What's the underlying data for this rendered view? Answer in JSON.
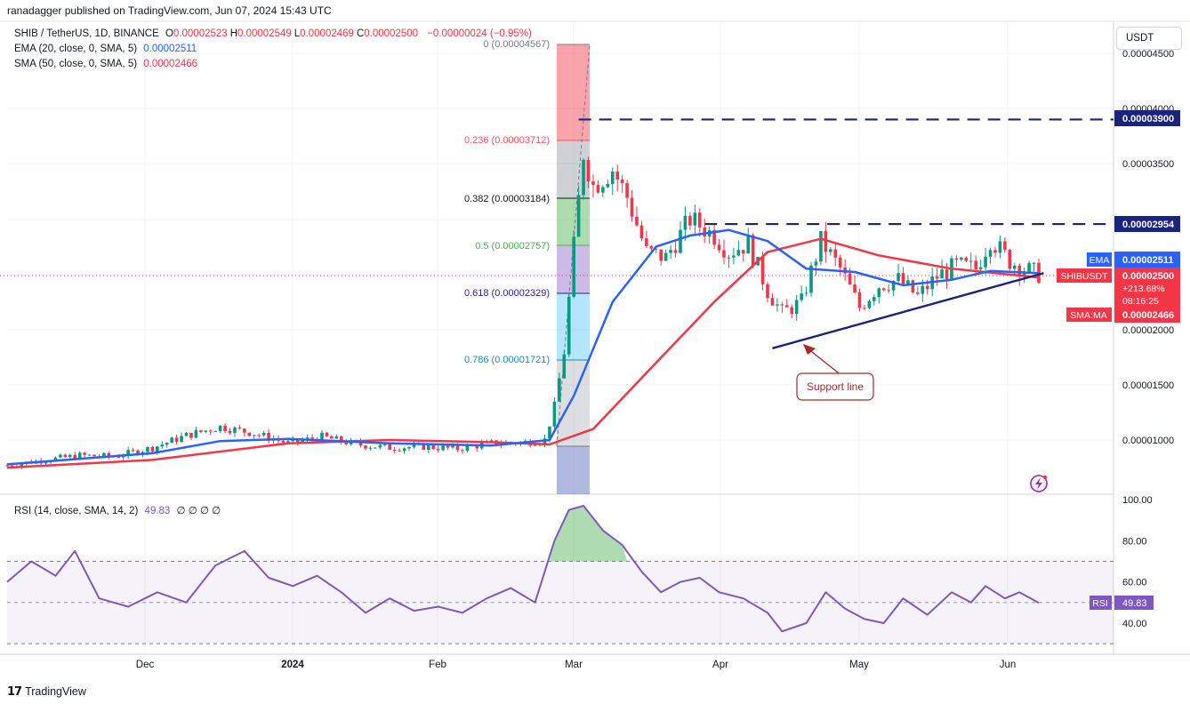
{
  "header": {
    "published_by": "ranadagger published on TradingView.com, Jun 07, 2024 15:43 UTC"
  },
  "symbol": {
    "pair": "SHIB / TetherUS, 1D, BINANCE",
    "ohlc": [
      {
        "label": "O",
        "value": "0.00002523"
      },
      {
        "label": "H",
        "value": "0.00002549"
      },
      {
        "label": "L",
        "value": "0.00002469"
      },
      {
        "label": "C",
        "value": "0.00002500"
      }
    ],
    "change": "−0.00000024 (−0.95%)"
  },
  "indicators": {
    "ema": {
      "label": "EMA (20, close, 0, SMA, 5)",
      "value": "0.00002511",
      "color": "#2962ff"
    },
    "sma": {
      "label": "SMA (50, close, 0, SMA, 5)",
      "value": "0.00002466",
      "color": "#f23645"
    },
    "rsi": {
      "label": "RSI (14, close, SMA, 14, 2)",
      "value": "49.83",
      "extras": "∅ ∅ ∅ ∅",
      "color": "#7e57c2"
    }
  },
  "price_axis": {
    "currency_button": "USDT",
    "ticks": [
      "0.00004500",
      "0.00004000",
      "0.00003500",
      "0.00003000",
      "0.00002000",
      "0.00001500",
      "0.00001000"
    ],
    "badges": {
      "resistance_high": "0.00003900",
      "resistance_mid": "0.00002954",
      "ema_tag": "EMA",
      "ema_value": "0.00002511",
      "symbol_tag": "SHIBUSDT",
      "price_value": "0.00002500",
      "price_change": "+213.68%",
      "countdown": "08:16:25",
      "sma_tag": "SMA:MA",
      "sma_value": "0.00002466"
    }
  },
  "rsi_axis": {
    "ticks": [
      "100.00",
      "80.00",
      "60.00",
      "40.00"
    ],
    "badge_tag": "RSI",
    "badge_value": "49.83"
  },
  "time_axis": {
    "labels": [
      "Dec",
      "2024",
      "Feb",
      "Mar",
      "Apr",
      "May",
      "Jun"
    ]
  },
  "fibonacci": [
    {
      "label": "0 (0.00004567)",
      "color": "#787b86"
    },
    {
      "label": "0.236 (0.00003712)",
      "color": "#f7525f"
    },
    {
      "label": "0.382 (0.00003184)",
      "color": "#131722"
    },
    {
      "label": "0.5 (0.00002757)",
      "color": "#4caf50"
    },
    {
      "label": "0.618 (0.00002329)",
      "color": "#311b92"
    },
    {
      "label": "0.786 (0.00001721)",
      "color": "#1e88b5"
    }
  ],
  "annotations": {
    "support_line": "Support line"
  },
  "footer": {
    "brand": "TradingView"
  },
  "chart_data": {
    "type": "candlestick",
    "title": "SHIB / TetherUS, 1D, BINANCE",
    "x_range": [
      "2023-11-07",
      "2024-06-07"
    ],
    "ylim": [
      7e-06,
      4.65e-05
    ],
    "grid": true,
    "price_series": {
      "name": "SHIBUSDT",
      "points": [
        [
          "2023-11-07",
          7.7e-06
        ],
        [
          "2023-11-15",
          8.2e-06
        ],
        [
          "2023-11-22",
          8.6e-06
        ],
        [
          "2023-11-29",
          8.5e-06
        ],
        [
          "2023-12-07",
          9.3e-06
        ],
        [
          "2023-12-14",
          1.04e-05
        ],
        [
          "2023-12-21",
          1.12e-05
        ],
        [
          "2023-12-28",
          1.06e-05
        ],
        [
          "2024-01-04",
          9.7e-06
        ],
        [
          "2024-01-11",
          1.03e-05
        ],
        [
          "2024-01-18",
          9.6e-06
        ],
        [
          "2024-01-25",
          9.3e-06
        ],
        [
          "2024-02-01",
          9.4e-06
        ],
        [
          "2024-02-08",
          9.2e-06
        ],
        [
          "2024-02-15",
          9.7e-06
        ],
        [
          "2024-02-22",
          9.8e-06
        ],
        [
          "2024-02-26",
          1e-05
        ],
        [
          "2024-02-28",
          1.3e-05
        ],
        [
          "2024-03-01",
          1.8e-05
        ],
        [
          "2024-03-03",
          2.75e-05
        ],
        [
          "2024-03-05",
          3.6e-05
        ],
        [
          "2024-03-07",
          3.3e-05
        ],
        [
          "2024-03-11",
          3.45e-05
        ],
        [
          "2024-03-14",
          3.2e-05
        ],
        [
          "2024-03-18",
          2.7e-05
        ],
        [
          "2024-03-22",
          2.65e-05
        ],
        [
          "2024-03-27",
          3e-05
        ],
        [
          "2024-04-01",
          2.85e-05
        ],
        [
          "2024-04-04",
          2.7e-05
        ],
        [
          "2024-04-08",
          2.78e-05
        ],
        [
          "2024-04-12",
          2.35e-05
        ],
        [
          "2024-04-15",
          2.15e-05
        ],
        [
          "2024-04-19",
          2.25e-05
        ],
        [
          "2024-04-23",
          2.8e-05
        ],
        [
          "2024-04-27",
          2.55e-05
        ],
        [
          "2024-05-01",
          2.2e-05
        ],
        [
          "2024-05-05",
          2.4e-05
        ],
        [
          "2024-05-09",
          2.45e-05
        ],
        [
          "2024-05-13",
          2.3e-05
        ],
        [
          "2024-05-17",
          2.48e-05
        ],
        [
          "2024-05-21",
          2.58e-05
        ],
        [
          "2024-05-25",
          2.55e-05
        ],
        [
          "2024-05-28",
          2.82e-05
        ],
        [
          "2024-06-01",
          2.62e-05
        ],
        [
          "2024-06-04",
          2.55e-05
        ],
        [
          "2024-06-07",
          2.5e-05
        ]
      ]
    },
    "ema20_series": {
      "name": "EMA",
      "points": [
        [
          "2023-11-07",
          7.8e-06
        ],
        [
          "2023-12-07",
          8.8e-06
        ],
        [
          "2023-12-21",
          9.9e-06
        ],
        [
          "2024-01-04",
          1.01e-05
        ],
        [
          "2024-01-25",
          9.7e-06
        ],
        [
          "2024-02-15",
          9.5e-06
        ],
        [
          "2024-02-27",
          1e-05
        ],
        [
          "2024-03-03",
          1.4e-05
        ],
        [
          "2024-03-11",
          2.25e-05
        ],
        [
          "2024-03-20",
          2.75e-05
        ],
        [
          "2024-03-27",
          2.85e-05
        ],
        [
          "2024-04-04",
          2.9e-05
        ],
        [
          "2024-04-12",
          2.8e-05
        ],
        [
          "2024-04-20",
          2.55e-05
        ],
        [
          "2024-04-30",
          2.52e-05
        ],
        [
          "2024-05-10",
          2.4e-05
        ],
        [
          "2024-05-20",
          2.45e-05
        ],
        [
          "2024-05-28",
          2.53e-05
        ],
        [
          "2024-06-07",
          2.51e-05
        ]
      ]
    },
    "sma50_series": {
      "name": "SMA:MA",
      "points": [
        [
          "2023-11-07",
          7.5e-06
        ],
        [
          "2023-12-07",
          8.2e-06
        ],
        [
          "2024-01-04",
          9.7e-06
        ],
        [
          "2024-01-25",
          1e-05
        ],
        [
          "2024-02-15",
          9.8e-06
        ],
        [
          "2024-02-27",
          9.6e-06
        ],
        [
          "2024-03-07",
          1.1e-05
        ],
        [
          "2024-03-20",
          1.7e-05
        ],
        [
          "2024-04-01",
          2.25e-05
        ],
        [
          "2024-04-12",
          2.7e-05
        ],
        [
          "2024-04-23",
          2.82e-05
        ],
        [
          "2024-05-05",
          2.67e-05
        ],
        [
          "2024-05-20",
          2.55e-05
        ],
        [
          "2024-06-07",
          2.47e-05
        ]
      ]
    },
    "horizontal_levels": [
      {
        "value": 3.9e-05,
        "from": "2024-03-04",
        "style": "dashed"
      },
      {
        "value": 2.954e-05,
        "from": "2024-03-30",
        "style": "dashed"
      }
    ],
    "support_line": {
      "from": [
        "2024-04-13",
        1.83e-05
      ],
      "to": [
        "2024-06-08",
        2.51e-05
      ]
    },
    "rsi_series": {
      "name": "RSI",
      "ylim": [
        26,
        102
      ],
      "overbought": 70,
      "oversold": 30,
      "points": [
        [
          "2023-11-07",
          60
        ],
        [
          "2023-11-12",
          70
        ],
        [
          "2023-11-17",
          63
        ],
        [
          "2023-11-21",
          75
        ],
        [
          "2023-11-26",
          52
        ],
        [
          "2023-12-02",
          48
        ],
        [
          "2023-12-08",
          55
        ],
        [
          "2023-12-14",
          50
        ],
        [
          "2023-12-20",
          68
        ],
        [
          "2023-12-26",
          75
        ],
        [
          "2023-12-31",
          62
        ],
        [
          "2024-01-05",
          58
        ],
        [
          "2024-01-10",
          63
        ],
        [
          "2024-01-15",
          55
        ],
        [
          "2024-01-20",
          45
        ],
        [
          "2024-01-25",
          52
        ],
        [
          "2024-01-30",
          46
        ],
        [
          "2024-02-04",
          48
        ],
        [
          "2024-02-09",
          45
        ],
        [
          "2024-02-14",
          52
        ],
        [
          "2024-02-19",
          57
        ],
        [
          "2024-02-24",
          50
        ],
        [
          "2024-02-28",
          80
        ],
        [
          "2024-03-02",
          95
        ],
        [
          "2024-03-05",
          97
        ],
        [
          "2024-03-09",
          85
        ],
        [
          "2024-03-13",
          78
        ],
        [
          "2024-03-17",
          65
        ],
        [
          "2024-03-21",
          55
        ],
        [
          "2024-03-25",
          60
        ],
        [
          "2024-03-29",
          62
        ],
        [
          "2024-04-02",
          55
        ],
        [
          "2024-04-07",
          52
        ],
        [
          "2024-04-12",
          45
        ],
        [
          "2024-04-15",
          36
        ],
        [
          "2024-04-20",
          40
        ],
        [
          "2024-04-24",
          55
        ],
        [
          "2024-04-28",
          47
        ],
        [
          "2024-05-02",
          42
        ],
        [
          "2024-05-06",
          40
        ],
        [
          "2024-05-10",
          52
        ],
        [
          "2024-05-15",
          44
        ],
        [
          "2024-05-20",
          55
        ],
        [
          "2024-05-24",
          50
        ],
        [
          "2024-05-27",
          58
        ],
        [
          "2024-05-31",
          52
        ],
        [
          "2024-06-03",
          55
        ],
        [
          "2024-06-07",
          49.83
        ]
      ]
    }
  }
}
